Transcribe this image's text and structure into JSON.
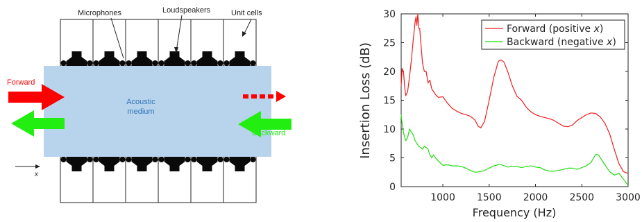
{
  "schematic": {
    "labels": {
      "microphones": "Microphones",
      "loudspeakers": "Loudspeakers",
      "unit_cells": "Unit cells",
      "forward": "Forward",
      "backward": "Backward",
      "medium_line1": "Acoustic",
      "medium_line2": "medium",
      "x_axis": "x"
    },
    "colors": {
      "medium": "#b8d3ec",
      "medium_text": "#2e75b6",
      "forward": "#ff0000",
      "backward": "#22ee11"
    },
    "cell_count": 6
  },
  "chart_data": {
    "type": "line",
    "xlabel": "Frequency (Hz)",
    "ylabel": "Insertion Loss (dB)",
    "xlim": [
      550,
      3000
    ],
    "ylim": [
      0,
      30
    ],
    "xticks": [
      1000,
      1500,
      2000,
      2500,
      3000
    ],
    "yticks": [
      0,
      5,
      10,
      15,
      20,
      25,
      30
    ],
    "grid": false,
    "legend_position": "top-right",
    "series": [
      {
        "name_main": "Forward (positive ",
        "name_var": "x",
        "name_end": ")",
        "color": "#ee1c1c",
        "x": [
          550,
          560,
          575,
          590,
          600,
          620,
          640,
          660,
          680,
          700,
          710,
          720,
          730,
          740,
          750,
          760,
          780,
          800,
          820,
          840,
          860,
          880,
          900,
          920,
          950,
          1000,
          1050,
          1100,
          1150,
          1200,
          1250,
          1300,
          1350,
          1380,
          1410,
          1450,
          1500,
          1550,
          1600,
          1630,
          1660,
          1700,
          1750,
          1800,
          1850,
          1900,
          1950,
          2000,
          2050,
          2100,
          2150,
          2200,
          2250,
          2300,
          2350,
          2400,
          2450,
          2500,
          2550,
          2600,
          2650,
          2700,
          2750,
          2800,
          2850,
          2900,
          2950,
          3000
        ],
        "y": [
          17.5,
          20.5,
          20,
          17,
          15.8,
          16.5,
          19,
          22,
          25.5,
          28.5,
          29.5,
          28,
          30,
          27.5,
          27.5,
          25.5,
          21.5,
          20,
          20,
          18,
          18.5,
          17,
          16.5,
          16,
          15.5,
          15.6,
          14.5,
          13.6,
          13.1,
          12.7,
          12.5,
          12.2,
          11.5,
          10.5,
          10.2,
          11.3,
          15,
          19,
          21.8,
          22,
          21.6,
          20,
          17.5,
          15.7,
          15,
          13.8,
          13,
          12.5,
          12.2,
          12,
          11.8,
          11.5,
          11,
          10.5,
          10.4,
          10.7,
          11.5,
          12,
          12.5,
          12.8,
          12.7,
          12.1,
          11,
          9.2,
          6.5,
          4,
          2.6,
          2.3
        ]
      },
      {
        "name_main": "Backward (negative ",
        "name_var": "x",
        "name_end": ")",
        "color": "#22dd11",
        "x": [
          550,
          560,
          580,
          600,
          620,
          640,
          660,
          680,
          700,
          720,
          740,
          760,
          780,
          800,
          820,
          840,
          860,
          880,
          900,
          920,
          950,
          980,
          1000,
          1050,
          1100,
          1150,
          1200,
          1250,
          1300,
          1350,
          1400,
          1450,
          1500,
          1550,
          1580,
          1600,
          1650,
          1700,
          1750,
          1800,
          1850,
          1900,
          1950,
          2000,
          2050,
          2100,
          2150,
          2200,
          2250,
          2300,
          2350,
          2400,
          2450,
          2500,
          2550,
          2600,
          2620,
          2650,
          2680,
          2700,
          2750,
          2800,
          2850,
          2900,
          2950,
          3000
        ],
        "y": [
          12.5,
          11,
          9,
          8,
          8.5,
          10,
          9.5,
          9,
          8,
          7.5,
          7,
          6.8,
          6.5,
          7,
          6.8,
          6.5,
          5.5,
          5,
          5.5,
          5,
          4.5,
          4,
          3.7,
          3.8,
          3.6,
          3.6,
          3.5,
          3.2,
          2.8,
          2.5,
          2.6,
          2.8,
          3.2,
          3.6,
          3.7,
          3.9,
          3.7,
          3.4,
          3.5,
          3.5,
          3.3,
          3.5,
          3.6,
          3.4,
          3.3,
          2.9,
          2.7,
          2.7,
          2.8,
          3,
          3.2,
          3.2,
          3,
          3.3,
          3.6,
          4.2,
          4.8,
          5.6,
          5.5,
          5,
          3.8,
          2.6,
          2.0,
          2.3,
          1.3,
          0.2
        ]
      }
    ]
  }
}
